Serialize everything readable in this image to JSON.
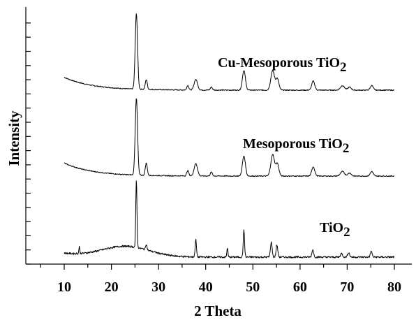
{
  "chart_data": {
    "type": "line",
    "title": "",
    "xlabel": "2 Theta",
    "ylabel": "Intensity",
    "xlim": [
      5,
      85
    ],
    "x_ticks": [
      10,
      20,
      30,
      40,
      50,
      60,
      70,
      80
    ],
    "y_ticks_labeled": false,
    "grid": false,
    "legend": "none",
    "series": [
      {
        "name": "Cu-Mesoporous TiO2",
        "label_text": "Cu-Mesoporous TiO",
        "label_sub": "2",
        "baseline": 0.17,
        "start_level": 0.14,
        "noise": 0.006,
        "peaks": [
          {
            "x": 25.3,
            "h": 1.0,
            "w": 0.35
          },
          {
            "x": 27.4,
            "h": 0.13,
            "w": 0.3
          },
          {
            "x": 36.2,
            "h": 0.06,
            "w": 0.3
          },
          {
            "x": 37.9,
            "h": 0.14,
            "w": 0.5
          },
          {
            "x": 41.2,
            "h": 0.04,
            "w": 0.3
          },
          {
            "x": 48.1,
            "h": 0.26,
            "w": 0.45
          },
          {
            "x": 54.2,
            "h": 0.26,
            "w": 0.55
          },
          {
            "x": 55.2,
            "h": 0.15,
            "w": 0.45
          },
          {
            "x": 62.8,
            "h": 0.12,
            "w": 0.45
          },
          {
            "x": 69.0,
            "h": 0.06,
            "w": 0.6
          },
          {
            "x": 70.5,
            "h": 0.04,
            "w": 0.5
          },
          {
            "x": 75.2,
            "h": 0.06,
            "w": 0.45
          }
        ]
      },
      {
        "name": "Mesoporous TiO2",
        "label_text": "Mesoporous TiO",
        "label_sub": "2",
        "baseline": 0.17,
        "start_level": 0.14,
        "noise": 0.006,
        "peaks": [
          {
            "x": 25.3,
            "h": 1.0,
            "w": 0.35
          },
          {
            "x": 27.4,
            "h": 0.16,
            "w": 0.3
          },
          {
            "x": 36.2,
            "h": 0.07,
            "w": 0.3
          },
          {
            "x": 37.9,
            "h": 0.16,
            "w": 0.5
          },
          {
            "x": 41.2,
            "h": 0.05,
            "w": 0.3
          },
          {
            "x": 48.1,
            "h": 0.26,
            "w": 0.45
          },
          {
            "x": 54.2,
            "h": 0.28,
            "w": 0.55
          },
          {
            "x": 55.2,
            "h": 0.16,
            "w": 0.45
          },
          {
            "x": 62.8,
            "h": 0.12,
            "w": 0.45
          },
          {
            "x": 69.0,
            "h": 0.06,
            "w": 0.6
          },
          {
            "x": 70.5,
            "h": 0.04,
            "w": 0.5
          },
          {
            "x": 75.2,
            "h": 0.06,
            "w": 0.45
          }
        ]
      },
      {
        "name": "TiO2",
        "label_text": "TiO",
        "label_sub": "2",
        "baseline": 0.05,
        "start_level": 0.0,
        "noise": 0.012,
        "hump": {
          "x": 23.0,
          "h": 0.14,
          "w": 7.0
        },
        "peaks": [
          {
            "x": 13.2,
            "h": 0.1,
            "w": 0.12
          },
          {
            "x": 25.3,
            "h": 0.9,
            "w": 0.18
          },
          {
            "x": 27.4,
            "h": 0.08,
            "w": 0.2
          },
          {
            "x": 37.9,
            "h": 0.23,
            "w": 0.2
          },
          {
            "x": 44.6,
            "h": 0.13,
            "w": 0.15
          },
          {
            "x": 48.1,
            "h": 0.36,
            "w": 0.2
          },
          {
            "x": 53.9,
            "h": 0.2,
            "w": 0.25
          },
          {
            "x": 55.1,
            "h": 0.16,
            "w": 0.25
          },
          {
            "x": 62.7,
            "h": 0.1,
            "w": 0.25
          },
          {
            "x": 68.8,
            "h": 0.05,
            "w": 0.3
          },
          {
            "x": 70.3,
            "h": 0.06,
            "w": 0.3
          },
          {
            "x": 75.1,
            "h": 0.08,
            "w": 0.25
          }
        ]
      }
    ]
  }
}
